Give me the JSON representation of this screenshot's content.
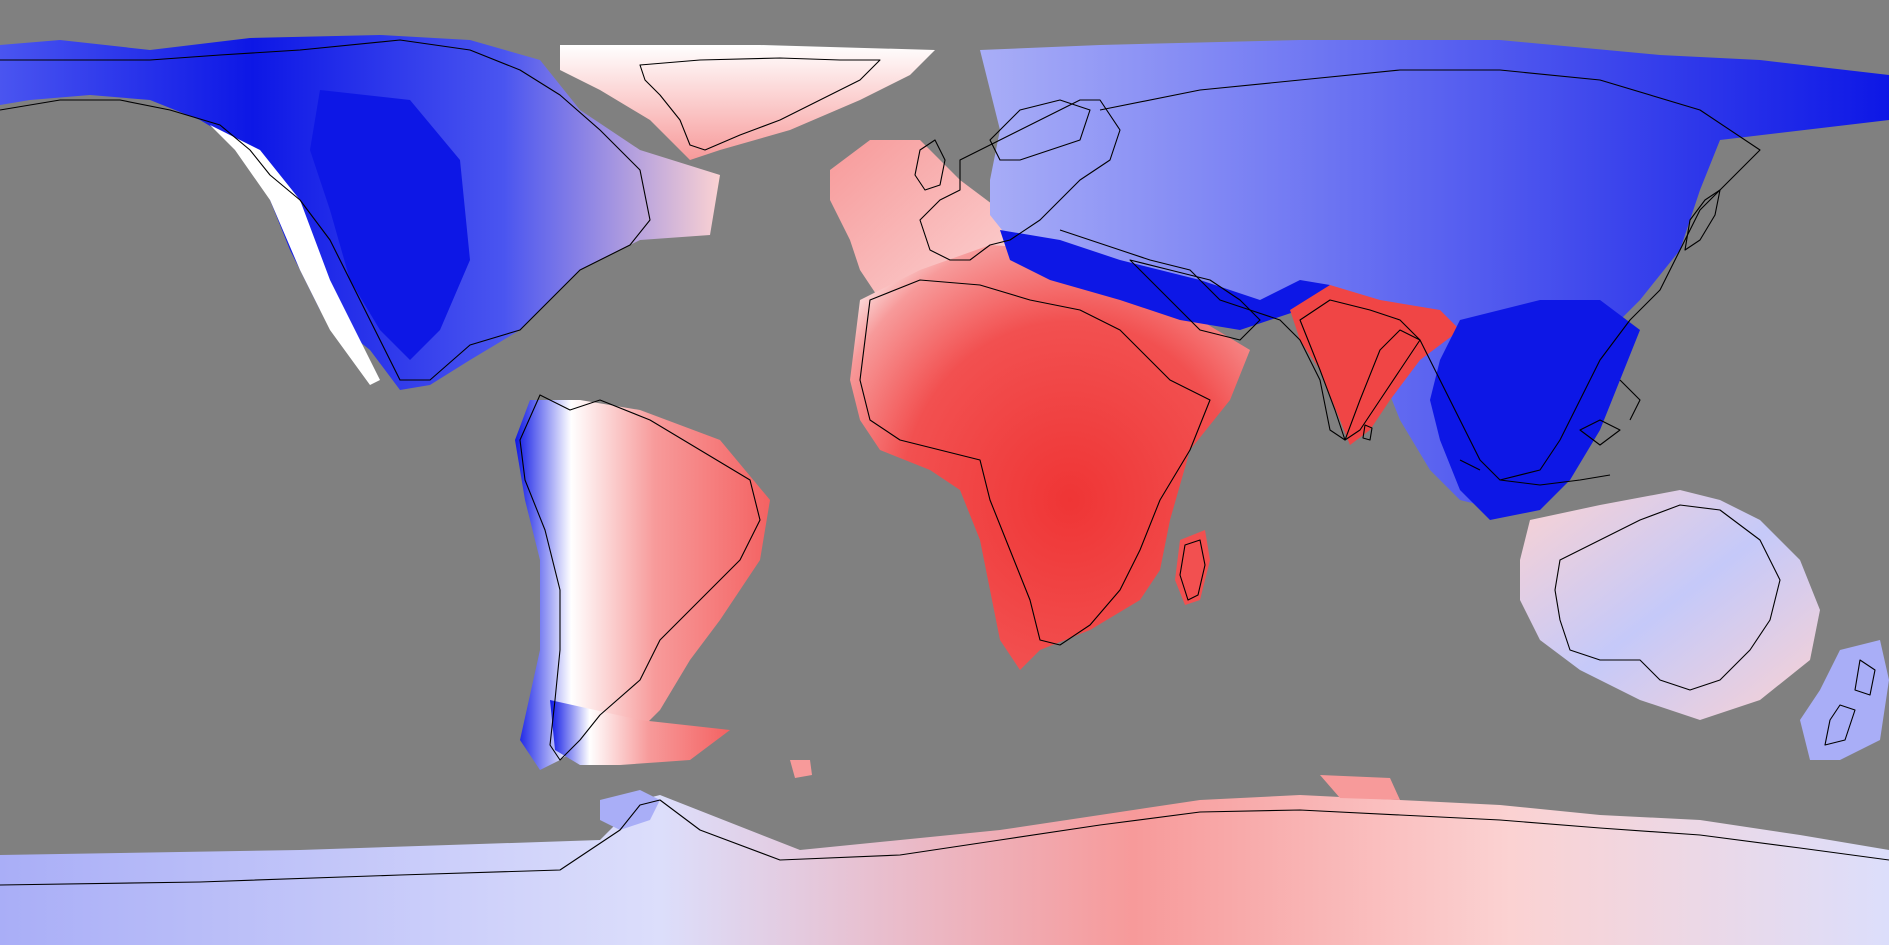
{
  "map": {
    "type": "global-anomaly-map",
    "projection": "equirectangular",
    "lon_range": [
      -180,
      180
    ],
    "lat_range": [
      -90,
      90
    ],
    "ocean_color": "#808080",
    "coastline_color": "#000000",
    "palette": {
      "deep_blue": "#0d17e6",
      "mid_blue": "#4a55f0",
      "light_blue": "#a9aef7",
      "pale_blue": "#dcdefb",
      "white": "#ffffff",
      "pale_red": "#fbd2d2",
      "light_red": "#f79a9a",
      "mid_red": "#f46262",
      "deep_red": "#ef3535"
    },
    "regions": [
      {
        "name": "north-america",
        "sign": "negative"
      },
      {
        "name": "greenland",
        "sign": "positive"
      },
      {
        "name": "south-america",
        "sign": "mixed"
      },
      {
        "name": "africa",
        "sign": "positive"
      },
      {
        "name": "western-europe",
        "sign": "positive"
      },
      {
        "name": "eurasia",
        "sign": "negative"
      },
      {
        "name": "india",
        "sign": "positive"
      },
      {
        "name": "southeast-asia",
        "sign": "negative"
      },
      {
        "name": "australia",
        "sign": "mixed"
      },
      {
        "name": "new-zealand",
        "sign": "negative"
      },
      {
        "name": "antarctica",
        "sign": "mixed"
      }
    ]
  }
}
